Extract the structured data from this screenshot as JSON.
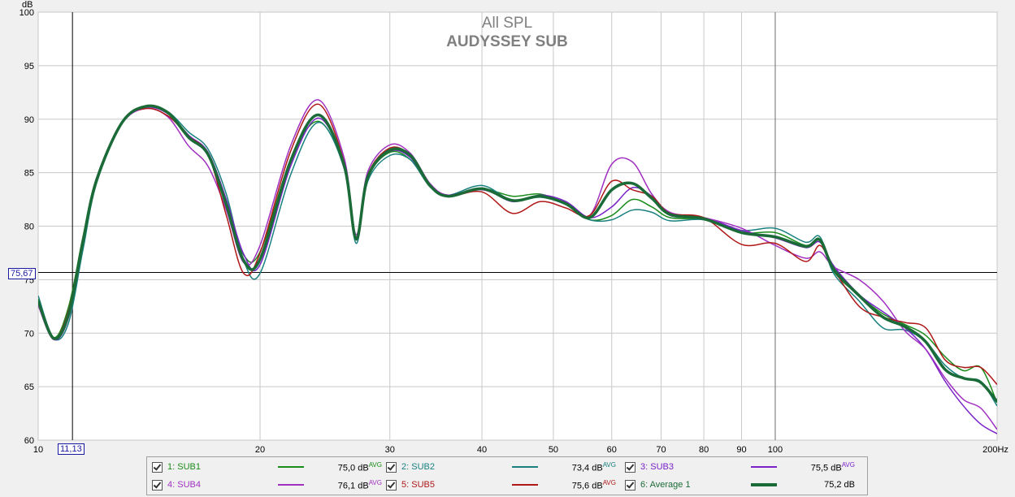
{
  "chart_data": {
    "type": "line",
    "title": "All SPL",
    "subtitle": "AUDYSSEY SUB",
    "ylabel": "dB",
    "xscale": "log",
    "xlim": [
      10,
      200
    ],
    "ylim": [
      60,
      100
    ],
    "y_ticks": [
      "60",
      "65",
      "70",
      "75",
      "80",
      "85",
      "90",
      "95",
      "100"
    ],
    "x_ticks": [
      {
        "v": 10,
        "label": "10"
      },
      {
        "v": 20,
        "label": "20"
      },
      {
        "v": 30,
        "label": "30"
      },
      {
        "v": 40,
        "label": "40"
      },
      {
        "v": 50,
        "label": "50"
      },
      {
        "v": 60,
        "label": "60"
      },
      {
        "v": 70,
        "label": "70"
      },
      {
        "v": 80,
        "label": "80"
      },
      {
        "v": 90,
        "label": "90"
      },
      {
        "v": 100,
        "label": "100"
      },
      {
        "v": 200,
        "label": "200Hz"
      }
    ],
    "grid": true,
    "cursor": {
      "x": 11.13,
      "x_label": "11,13",
      "y": 75.67,
      "y_label": "75,67"
    },
    "series": [
      {
        "name": "SUB1",
        "color": "#1a8c1a",
        "width": 1.5,
        "x": [
          10,
          10.5,
          11,
          11.5,
          12,
          13,
          14,
          15,
          16,
          17,
          18,
          19,
          20,
          22,
          24,
          26,
          27,
          28,
          30,
          32,
          34,
          36,
          40,
          44,
          48,
          52,
          56,
          60,
          64,
          68,
          72,
          80,
          90,
          100,
          110,
          115,
          120,
          130,
          140,
          150,
          160,
          170,
          180,
          190,
          200
        ],
        "y": [
          73.2,
          69.6,
          72.5,
          79,
          84.5,
          89.8,
          91.2,
          90.6,
          88.5,
          86.8,
          82,
          77.3,
          77.6,
          86.2,
          89.8,
          85.5,
          78.7,
          84.5,
          86.9,
          86.2,
          83.7,
          82.8,
          83.5,
          82.8,
          83.0,
          82.0,
          80.6,
          81.0,
          82.5,
          81.8,
          80.8,
          80.6,
          79.4,
          79.4,
          78.2,
          78.8,
          75.8,
          73.5,
          71.8,
          70.8,
          69.8,
          67.8,
          66.5,
          66.8,
          63.5
        ]
      },
      {
        "name": "SUB2",
        "color": "#1a8080",
        "width": 1.5,
        "x": [
          10,
          10.5,
          11,
          11.5,
          12,
          13,
          14,
          15,
          16,
          17,
          18,
          19,
          20,
          22,
          24,
          26,
          27,
          28,
          30,
          32,
          34,
          36,
          40,
          44,
          48,
          52,
          56,
          60,
          64,
          68,
          72,
          80,
          90,
          100,
          110,
          115,
          120,
          130,
          140,
          150,
          160,
          170,
          180,
          190,
          200
        ],
        "y": [
          73.5,
          69.5,
          71,
          77.8,
          84,
          89.6,
          91.2,
          90.7,
          88.8,
          87.2,
          83,
          76.8,
          75.6,
          84.8,
          89.7,
          85.4,
          78.4,
          84.2,
          86.6,
          86.2,
          83.7,
          82.9,
          83.8,
          82.4,
          82.7,
          82.0,
          80.6,
          80.6,
          81.5,
          81.3,
          80.5,
          80.6,
          79.6,
          79.8,
          78.5,
          79.0,
          75.6,
          73.0,
          70.5,
          70.3,
          69.2,
          67.0,
          65.8,
          65.5,
          63.2
        ]
      },
      {
        "name": "SUB3",
        "color": "#7a22c8",
        "width": 1.5,
        "x": [
          10,
          10.5,
          11,
          11.5,
          12,
          13,
          14,
          15,
          16,
          17,
          18,
          19,
          20,
          22,
          24,
          26,
          27,
          28,
          30,
          32,
          34,
          36,
          40,
          44,
          48,
          52,
          56,
          60,
          64,
          68,
          72,
          80,
          90,
          100,
          110,
          115,
          120,
          130,
          140,
          150,
          160,
          170,
          180,
          190,
          200
        ],
        "y": [
          72.8,
          69.4,
          71.5,
          78.3,
          84.2,
          89.7,
          91.1,
          90.5,
          88.5,
          86.9,
          82.5,
          77.4,
          76.4,
          85.6,
          90.1,
          85.7,
          78.9,
          84.7,
          87.0,
          86.4,
          83.8,
          82.9,
          83.5,
          82.3,
          82.9,
          82.3,
          80.8,
          81.8,
          83.6,
          82.8,
          81.0,
          80.8,
          79.6,
          78.9,
          78.0,
          78.5,
          76.3,
          73.6,
          72.0,
          70.5,
          68.5,
          65.5,
          63.2,
          61.5,
          60.6
        ]
      },
      {
        "name": "SUB4",
        "color": "#a030c0",
        "width": 1.5,
        "x": [
          10,
          10.5,
          11,
          11.5,
          12,
          13,
          14,
          15,
          16,
          17,
          18,
          19,
          20,
          22,
          24,
          26,
          27,
          28,
          30,
          32,
          34,
          36,
          40,
          44,
          48,
          52,
          56,
          60,
          64,
          68,
          72,
          80,
          90,
          100,
          110,
          115,
          120,
          130,
          140,
          150,
          160,
          170,
          180,
          190,
          200
        ],
        "y": [
          72.6,
          69.4,
          72,
          78.7,
          84.4,
          89.6,
          91.0,
          90.2,
          87.5,
          85.6,
          81.5,
          76.6,
          78.2,
          87.5,
          91.8,
          86.4,
          79.2,
          85.1,
          87.6,
          86.8,
          84.0,
          82.9,
          83.4,
          82.4,
          82.8,
          82.2,
          81.0,
          85.8,
          86.0,
          83.0,
          81.3,
          80.8,
          79.8,
          78.2,
          77.0,
          77.6,
          76.2,
          75.0,
          73.0,
          70.2,
          68.5,
          65.8,
          63.8,
          63.0,
          61.0
        ]
      },
      {
        "name": "SUB5",
        "color": "#b01818",
        "width": 1.5,
        "x": [
          10,
          10.5,
          11,
          11.5,
          12,
          13,
          14,
          15,
          16,
          17,
          18,
          19,
          20,
          22,
          24,
          26,
          27,
          28,
          30,
          32,
          34,
          36,
          40,
          44,
          48,
          52,
          56,
          60,
          64,
          68,
          72,
          80,
          90,
          100,
          110,
          115,
          120,
          130,
          140,
          150,
          160,
          170,
          180,
          190,
          200
        ],
        "y": [
          73.0,
          69.5,
          72.2,
          78.9,
          84.5,
          89.8,
          91.0,
          90.3,
          88.4,
          86.7,
          81.0,
          75.6,
          77.5,
          87.0,
          91.4,
          86.0,
          79.0,
          84.8,
          87.3,
          86.6,
          83.8,
          82.8,
          83.2,
          81.2,
          82.3,
          81.7,
          81.0,
          84.2,
          83.4,
          82.8,
          81.2,
          80.8,
          78.3,
          78.4,
          76.7,
          78.2,
          76.0,
          72.5,
          71.5,
          71.0,
          70.5,
          67.5,
          66.8,
          66.8,
          65.2
        ]
      },
      {
        "name": "Average 1",
        "color": "#1b6b38",
        "width": 3.5,
        "x": [
          10,
          10.5,
          11,
          11.5,
          12,
          13,
          14,
          15,
          16,
          17,
          18,
          19,
          20,
          22,
          24,
          26,
          27,
          28,
          30,
          32,
          34,
          36,
          40,
          44,
          48,
          52,
          56,
          60,
          64,
          68,
          72,
          80,
          90,
          100,
          110,
          115,
          120,
          130,
          140,
          150,
          160,
          170,
          180,
          190,
          200
        ],
        "y": [
          73.0,
          69.5,
          71.8,
          78.6,
          84.3,
          89.7,
          91.2,
          90.6,
          88.3,
          86.7,
          82.0,
          76.8,
          76.9,
          86.1,
          90.4,
          85.7,
          78.8,
          84.6,
          87.1,
          86.6,
          83.8,
          82.8,
          83.5,
          82.4,
          82.8,
          82.1,
          80.8,
          83.4,
          84.0,
          82.6,
          81.1,
          80.7,
          79.4,
          79.0,
          78.1,
          78.7,
          76.0,
          73.5,
          71.5,
          70.6,
          69.2,
          66.6,
          65.8,
          65.4,
          63.6
        ]
      }
    ]
  },
  "legend": {
    "items": [
      {
        "label": "1: SUB1",
        "value": "75,0 dB",
        "sup": "AVG",
        "color": "#1a8c1a",
        "width": 2
      },
      {
        "label": "2: SUB2",
        "value": "73,4 dB",
        "sup": "AVG",
        "color": "#1a8080",
        "width": 2
      },
      {
        "label": "3: SUB3",
        "value": "75,5 dB",
        "sup": "AVG",
        "color": "#7a22c8",
        "width": 2
      },
      {
        "label": "4: SUB4",
        "value": "76,1 dB",
        "sup": "AVG",
        "color": "#a030c0",
        "width": 2
      },
      {
        "label": "5: SUB5",
        "value": "75,6 dB",
        "sup": "AVG",
        "color": "#b01818",
        "width": 2
      },
      {
        "label": "6: Average 1",
        "value": "75,2 dB",
        "sup": "",
        "color": "#1b6b38",
        "width": 4
      }
    ]
  }
}
